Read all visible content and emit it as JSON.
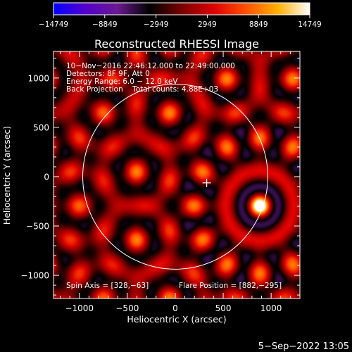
{
  "chart_data": {
    "type": "heatmap",
    "title": "Reconstructed RHESSI Image",
    "xlabel": "Heliocentric X (arcsec)",
    "ylabel": "Heliocentric Y (arcsec)",
    "xlim": [
      -1270,
      1300
    ],
    "ylim": [
      -1235,
      1270
    ],
    "xticks": [
      -1000,
      -500,
      0,
      500,
      1000
    ],
    "xtick_labels": [
      "−1000",
      "−500",
      "0",
      "500",
      "1000"
    ],
    "yticks": [
      1000,
      500,
      0,
      -500,
      -1000
    ],
    "ytick_labels": [
      "1000",
      "500",
      "0",
      "−500",
      "−1000"
    ],
    "colorbar": {
      "min": -14749,
      "max": 14749,
      "ticks": [
        -14749,
        -8849,
        -2949,
        2949,
        8849,
        14749
      ],
      "tick_labels": [
        "−14749",
        "−8849",
        "−2949",
        "2949",
        "8849",
        "14749"
      ],
      "colors": [
        "#0000ff",
        "#5500cc",
        "#6a1a90",
        "#000000",
        "#7a0000",
        "#dd0000",
        "#ff5000",
        "#ffb000",
        "#ffffff"
      ]
    },
    "annotations": [
      "10−Nov−2016 22:46:12.000 to 22:49:00.000",
      "Detectors: 8F 9F, Att 0",
      "Energy Range: 6.0 − 12.0 keV",
      "Back Projection    Total counts: 4.88E+03"
    ],
    "spin_axis_label": "Spin Axis = [328,−63]",
    "flare_position_label": "Flare Position = [882,−295]",
    "spin_axis": [
      328,
      -63
    ],
    "flare_position": [
      882,
      -295
    ],
    "solar_limb_center": [
      0,
      0
    ],
    "solar_limb_radius": 965,
    "grid": false,
    "legend": "none"
  },
  "footer": {
    "timestamp": "5−Sep−2022 13:05"
  }
}
